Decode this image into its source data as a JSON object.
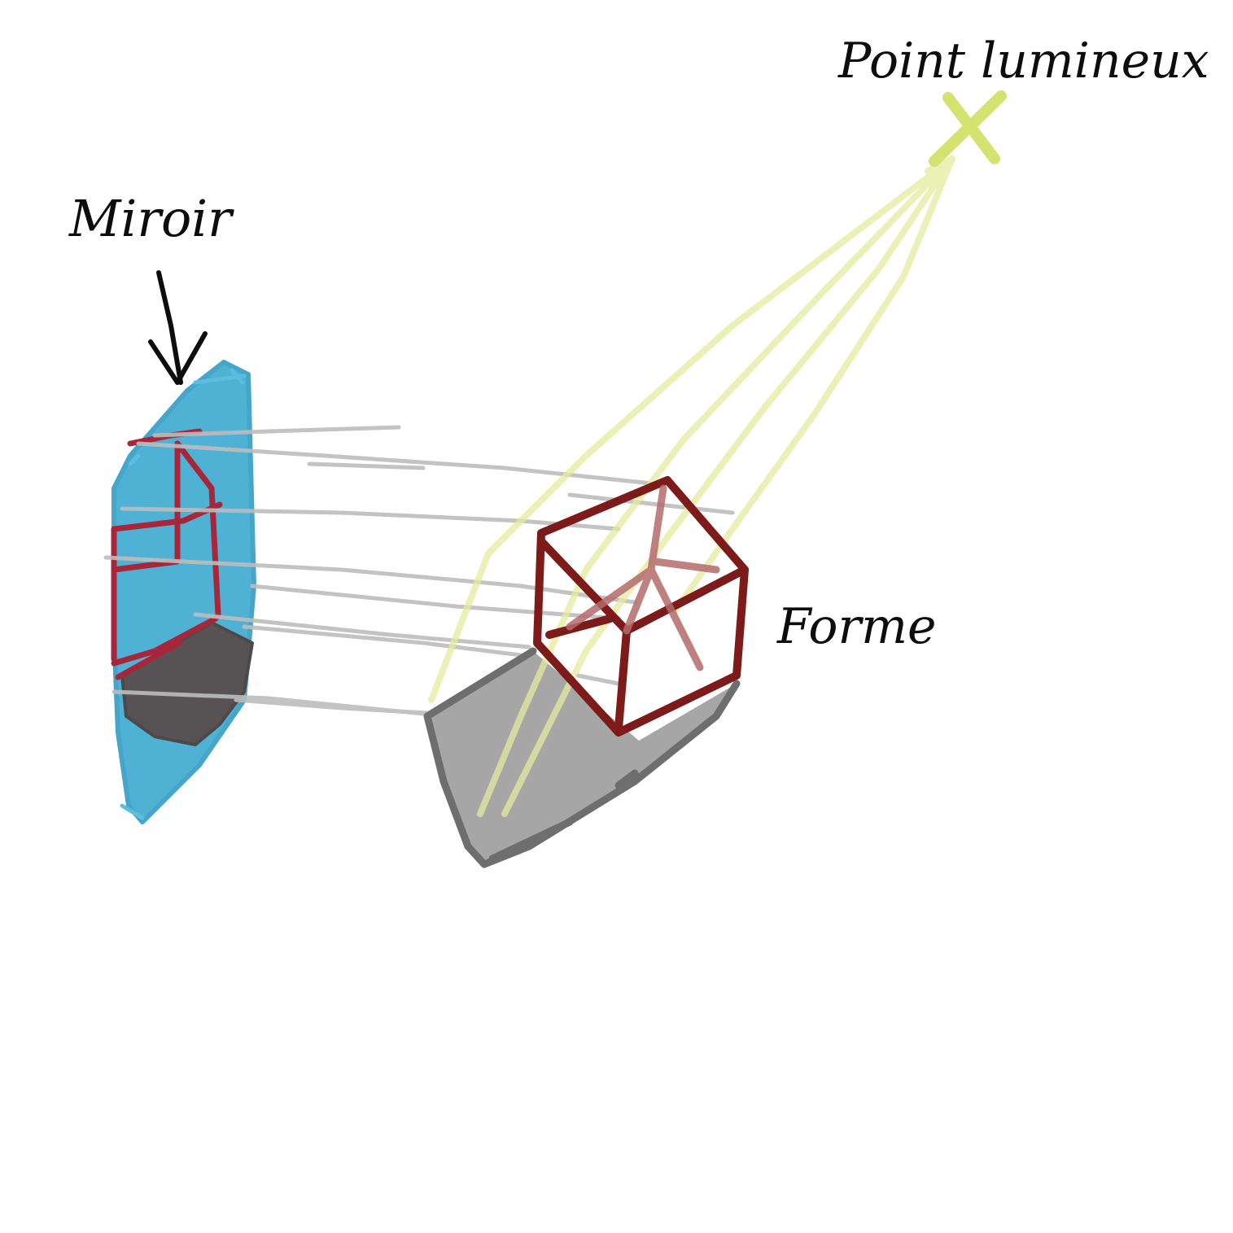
{
  "labels": {
    "light_source": "Point lumineux",
    "mirror": "Miroir",
    "shape": "Forme"
  },
  "colors": {
    "background": "#ffffff",
    "mirror_fill": "#4fb1d3",
    "cube_outline": "#7d1a1a",
    "mirror_reflection_outline": "#a8263a",
    "shadow_floor": "#a6a6a6",
    "shadow_floor_edge": "#6e6e6e",
    "mirror_shadow": "#575253",
    "light_rays": "#e3eb9e",
    "light_point": "#d4e36f",
    "reflection_lines": "#bdbdbd",
    "ink": "#0d0d0d"
  },
  "icons": {
    "light_point": "cross-mark",
    "mirror_pointer": "down-arrow"
  }
}
